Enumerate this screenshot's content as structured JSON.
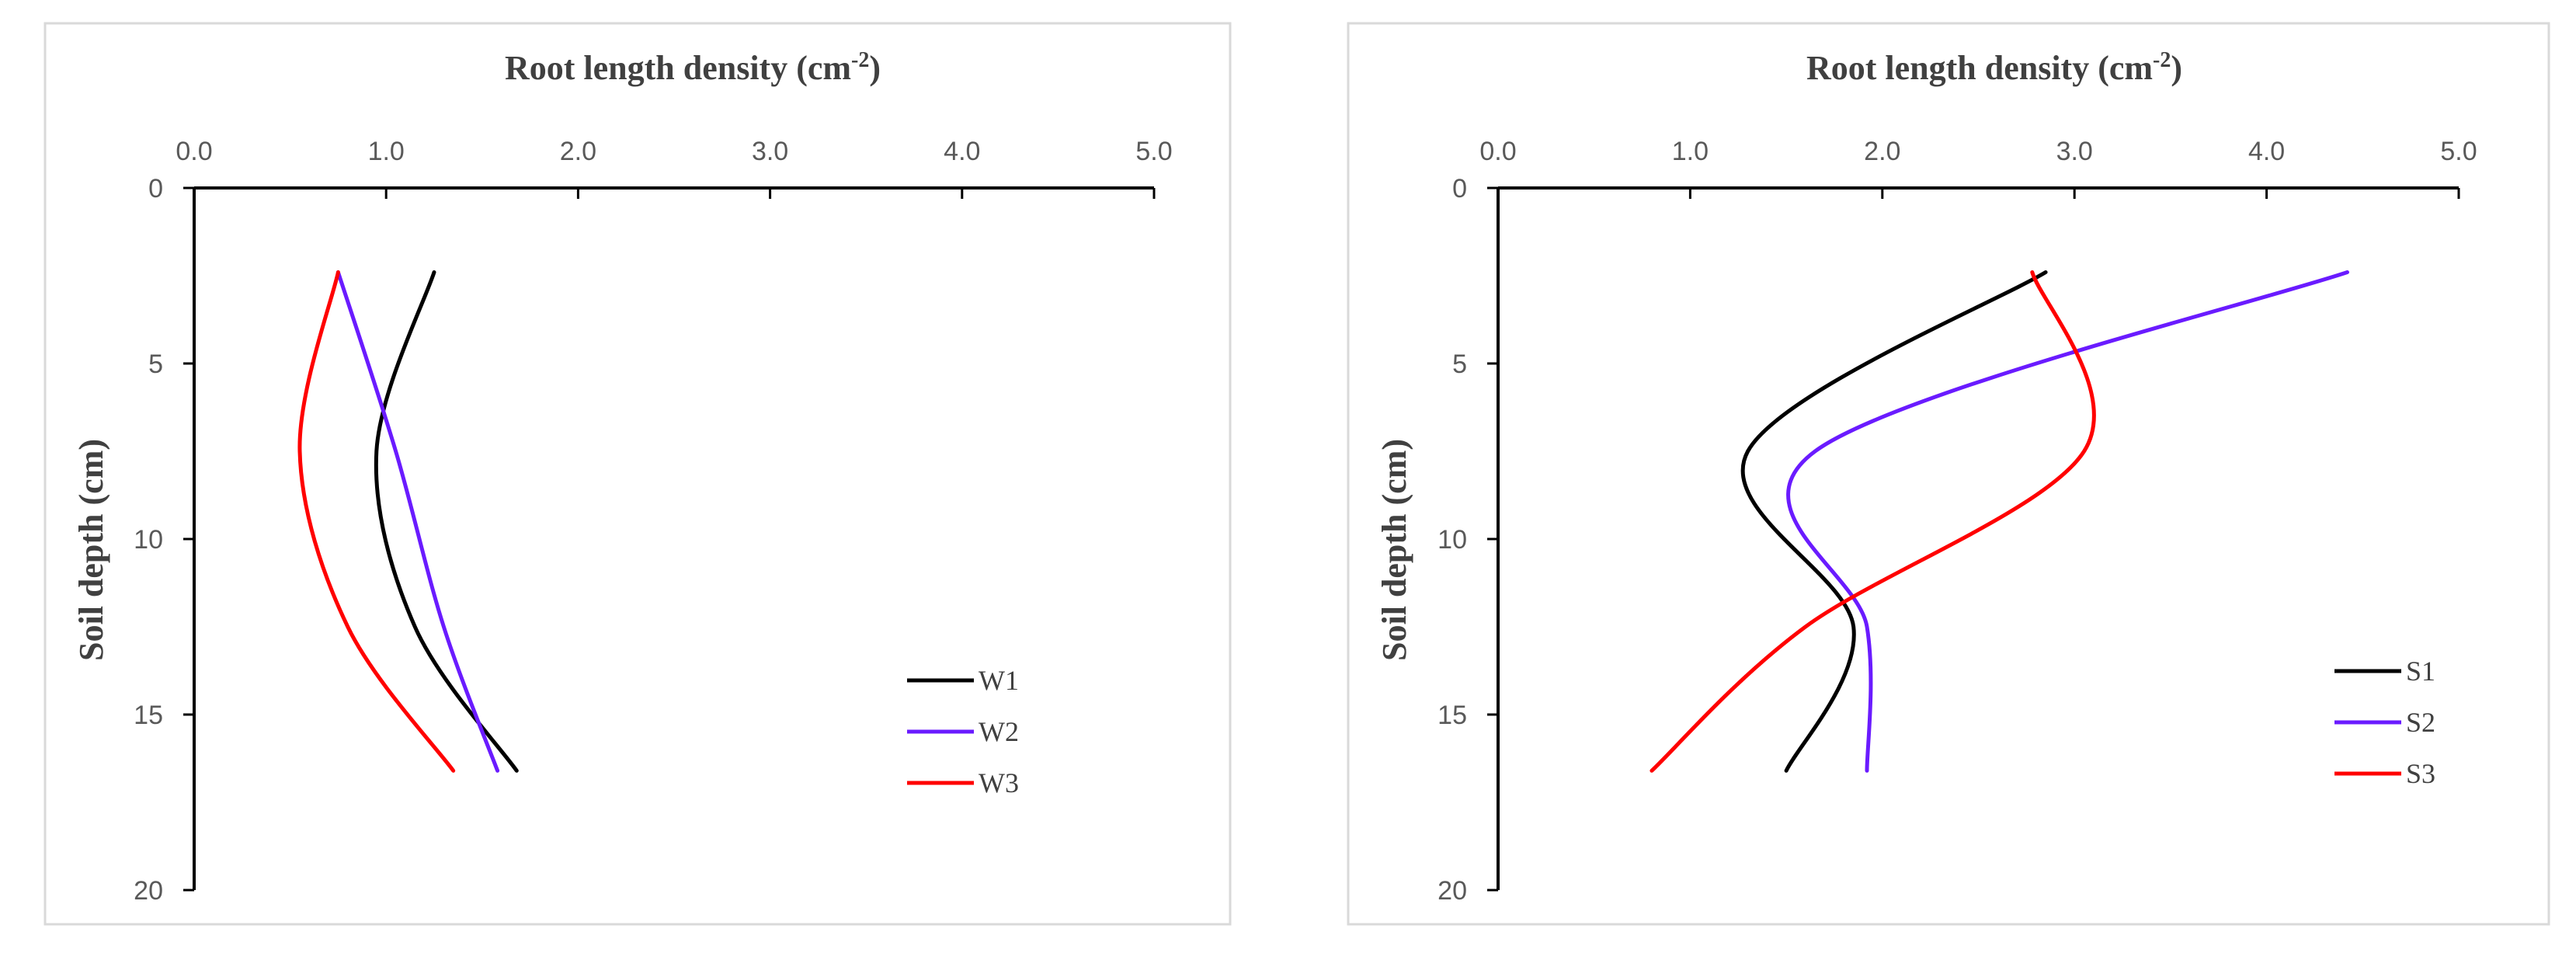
{
  "chart_data": [
    {
      "type": "line",
      "orientation": "depth-profile",
      "xlabel": "Root length density (cm",
      "xlabel_superscript": "-2",
      "xlabel_suffix": ")",
      "ylabel": "Soil depth (cm)",
      "xlim": [
        0,
        5
      ],
      "ylim": [
        0,
        20
      ],
      "y_inverted": true,
      "x_axis_position": "top",
      "x_ticks": [
        "0.0",
        "1.0",
        "2.0",
        "3.0",
        "4.0",
        "5.0"
      ],
      "y_ticks": [
        "0",
        "5",
        "10",
        "15",
        "20"
      ],
      "grid": false,
      "legend_position": "bottom-right",
      "depths": [
        2.4,
        7.5,
        12.5,
        16.6
      ],
      "series": [
        {
          "name": "W1",
          "color": "#000000",
          "x": [
            1.25,
            0.95,
            1.15,
            1.68
          ]
        },
        {
          "name": "W2",
          "color": "#6a1bff",
          "x": [
            0.75,
            1.05,
            1.3,
            1.58
          ]
        },
        {
          "name": "W3",
          "color": "#ff0000",
          "x": [
            0.75,
            0.55,
            0.8,
            1.35
          ]
        }
      ]
    },
    {
      "type": "line",
      "orientation": "depth-profile",
      "xlabel": "Root length density (cm",
      "xlabel_superscript": "-2",
      "xlabel_suffix": ")",
      "ylabel": "Soil depth (cm)",
      "xlim": [
        0,
        5
      ],
      "ylim": [
        0,
        20
      ],
      "y_inverted": true,
      "x_axis_position": "top",
      "x_ticks": [
        "0.0",
        "1.0",
        "2.0",
        "3.0",
        "4.0",
        "5.0"
      ],
      "y_ticks": [
        "0",
        "5",
        "10",
        "15",
        "20"
      ],
      "grid": false,
      "legend_position": "bottom-right",
      "depths": [
        2.4,
        7.5,
        12.5,
        16.6
      ],
      "series": [
        {
          "name": "S1",
          "color": "#000000",
          "x": [
            2.85,
            1.3,
            1.85,
            1.5
          ]
        },
        {
          "name": "S2",
          "color": "#6a1bff",
          "x": [
            4.42,
            1.65,
            1.92,
            1.92
          ]
        },
        {
          "name": "S3",
          "color": "#ff0000",
          "x": [
            2.78,
            3.05,
            1.6,
            0.8
          ]
        }
      ]
    }
  ]
}
